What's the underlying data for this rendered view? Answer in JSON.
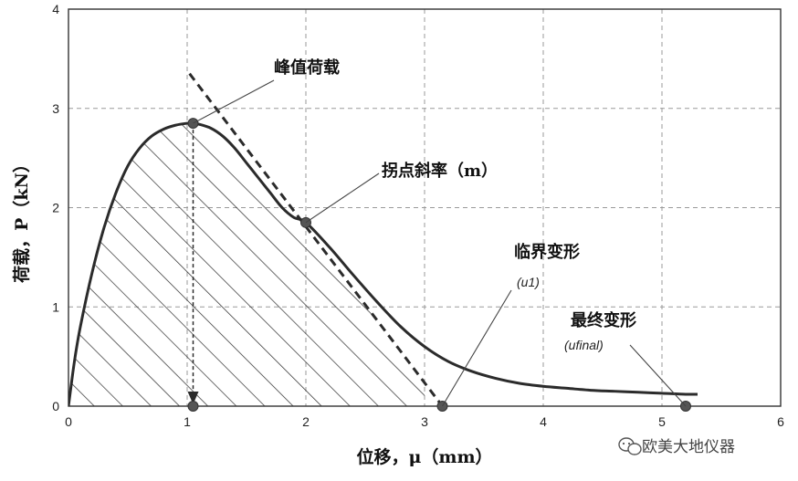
{
  "chart_data": {
    "type": "line",
    "xlabel": "位移，μ（mm）",
    "ylabel": "荷载，P（kN）",
    "xlim": [
      0,
      6
    ],
    "ylim": [
      0,
      4
    ],
    "xticks": [
      "0",
      "1",
      "2",
      "3",
      "4",
      "5",
      "6"
    ],
    "yticks": [
      "0",
      "1",
      "2",
      "3",
      "4"
    ],
    "grid": true,
    "grid_style": "dashed",
    "colors": {
      "curve": "#2b2b2b",
      "tangent": "#2b2b2b",
      "hatch": "#2b2b2b",
      "markers": "#555555",
      "grid": "#9a9a9a"
    },
    "series": [
      {
        "role": "load-displacement-curve",
        "x": [
          0,
          0.05,
          0.1,
          0.2,
          0.3,
          0.4,
          0.5,
          0.6,
          0.7,
          0.8,
          0.9,
          1.0,
          1.05,
          1.1,
          1.2,
          1.3,
          1.4,
          1.5,
          1.6,
          1.7,
          1.8,
          1.9,
          2.0,
          2.2,
          2.4,
          2.6,
          2.8,
          3.0,
          3.2,
          3.4,
          3.6,
          3.8,
          4.0,
          4.2,
          4.4,
          4.6,
          4.8,
          5.0,
          5.2,
          5.3
        ],
        "y": [
          0,
          0.45,
          0.8,
          1.35,
          1.8,
          2.15,
          2.42,
          2.6,
          2.72,
          2.79,
          2.83,
          2.85,
          2.85,
          2.84,
          2.8,
          2.72,
          2.6,
          2.45,
          2.3,
          2.15,
          2.0,
          1.9,
          1.85,
          1.6,
          1.32,
          1.05,
          0.8,
          0.6,
          0.45,
          0.35,
          0.28,
          0.23,
          0.2,
          0.18,
          0.16,
          0.15,
          0.14,
          0.13,
          0.12,
          0.12
        ]
      },
      {
        "role": "tangent-line",
        "x": [
          1.02,
          3.15
        ],
        "y": [
          3.35,
          0
        ]
      }
    ],
    "hatched_area_under": {
      "x_from": 0,
      "x_to": 3.0
    },
    "points": [
      {
        "label": "峰值荷载",
        "x": 1.05,
        "y": 2.85
      },
      {
        "label": "拐点斜率（m）",
        "x": 2.0,
        "y": 1.85
      },
      {
        "label": "临界变形",
        "sublabel": "(u1)",
        "x": 3.15,
        "y": 0
      },
      {
        "label": "最终变形",
        "sublabel": "(ufinal)",
        "x": 5.2,
        "y": 0
      },
      {
        "label": "",
        "x": 1.05,
        "y": 0
      }
    ],
    "peak_drop_arrow": {
      "x": 1.05,
      "from_y": 2.85,
      "to_y": 0
    }
  },
  "watermark": {
    "icon": "wechat-icon",
    "text": "欧美大地仪器"
  }
}
